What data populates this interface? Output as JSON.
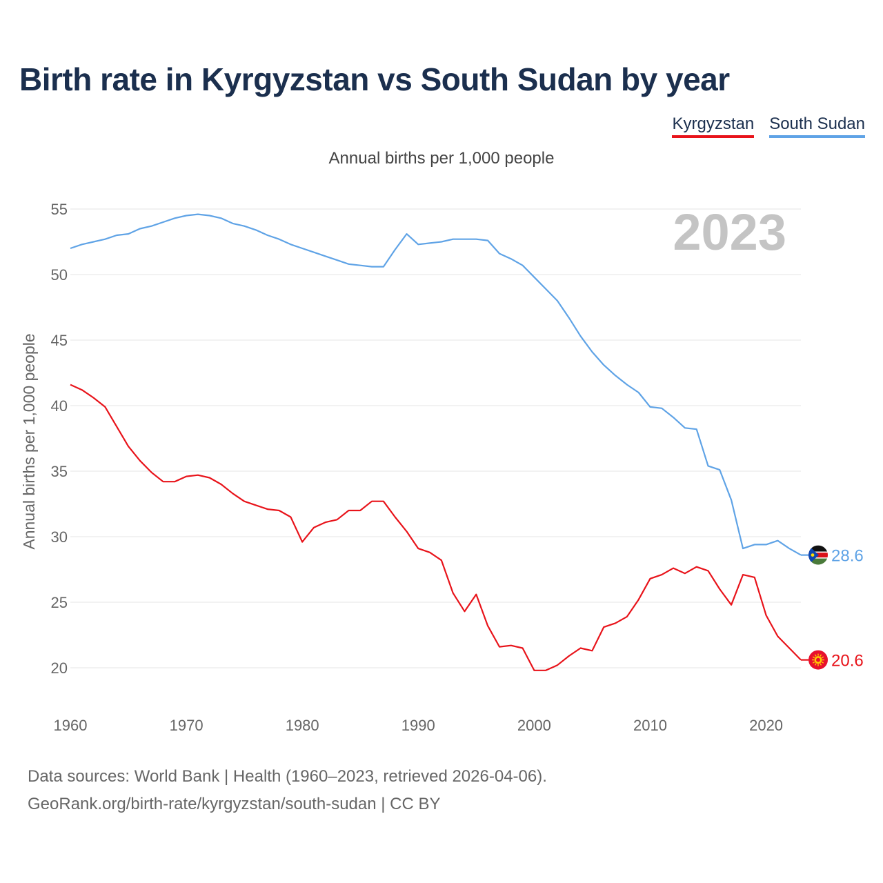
{
  "title": "Birth rate in Kyrgyzstan vs South Sudan by year",
  "subtitle": "Annual births per 1,000 people",
  "legend": [
    {
      "label": "Kyrgyzstan",
      "color": "#e8131a"
    },
    {
      "label": "South Sudan",
      "color": "#5fa3e6"
    }
  ],
  "year_display": "2023",
  "footer": {
    "line1": "Data sources: World Bank | Health (1960–2023, retrieved 2026-04-06).",
    "line2": "GeoRank.org/birth-rate/kyrgyzstan/south-sudan | CC BY"
  },
  "chart_data": {
    "type": "line",
    "title": "Birth rate in Kyrgyzstan vs South Sudan by year",
    "xlabel": "",
    "ylabel": "Annual births per 1,000 people",
    "xlim": [
      1960,
      2023
    ],
    "ylim": [
      17.5,
      55.5
    ],
    "x_ticks": [
      1960,
      1970,
      1980,
      1990,
      2000,
      2010,
      2020
    ],
    "y_ticks": [
      20,
      25,
      30,
      35,
      40,
      45,
      50,
      55
    ],
    "grid": true,
    "x": [
      1960,
      1961,
      1962,
      1963,
      1964,
      1965,
      1966,
      1967,
      1968,
      1969,
      1970,
      1971,
      1972,
      1973,
      1974,
      1975,
      1976,
      1977,
      1978,
      1979,
      1980,
      1981,
      1982,
      1983,
      1984,
      1985,
      1986,
      1987,
      1988,
      1989,
      1990,
      1991,
      1992,
      1993,
      1994,
      1995,
      1996,
      1997,
      1998,
      1999,
      2000,
      2001,
      2002,
      2003,
      2004,
      2005,
      2006,
      2007,
      2008,
      2009,
      2010,
      2011,
      2012,
      2013,
      2014,
      2015,
      2016,
      2017,
      2018,
      2019,
      2020,
      2021,
      2022,
      2023
    ],
    "series": [
      {
        "name": "Kyrgyzstan",
        "color": "#e8131a",
        "end_label": "20.6",
        "values": [
          41.6,
          41.2,
          40.6,
          39.9,
          38.4,
          36.9,
          35.8,
          34.9,
          34.2,
          34.2,
          34.6,
          34.7,
          34.5,
          34.0,
          33.3,
          32.7,
          32.4,
          32.1,
          32.0,
          31.5,
          29.6,
          30.7,
          31.1,
          31.3,
          32.0,
          32.0,
          32.7,
          32.7,
          31.5,
          30.4,
          29.1,
          28.8,
          28.2,
          25.7,
          24.3,
          25.6,
          23.2,
          21.6,
          21.7,
          21.5,
          19.8,
          19.8,
          20.2,
          20.9,
          21.5,
          21.3,
          23.1,
          23.4,
          23.9,
          25.2,
          26.8,
          27.1,
          27.6,
          27.2,
          27.7,
          27.4,
          26.0,
          24.8,
          27.1,
          26.9,
          24.0,
          22.4,
          21.5,
          20.6
        ]
      },
      {
        "name": "South Sudan",
        "color": "#5fa3e6",
        "end_label": "28.6",
        "values": [
          52.0,
          52.3,
          52.5,
          52.7,
          53.0,
          53.1,
          53.5,
          53.7,
          54.0,
          54.3,
          54.5,
          54.6,
          54.5,
          54.3,
          53.9,
          53.7,
          53.4,
          53.0,
          52.7,
          52.3,
          52.0,
          51.7,
          51.4,
          51.1,
          50.8,
          50.7,
          50.6,
          50.6,
          51.9,
          53.1,
          52.3,
          52.4,
          52.5,
          52.7,
          52.7,
          52.7,
          52.6,
          51.6,
          51.2,
          50.7,
          49.8,
          48.9,
          48.0,
          46.7,
          45.3,
          44.1,
          43.1,
          42.3,
          41.6,
          41.0,
          39.9,
          39.8,
          39.1,
          38.3,
          38.2,
          35.4,
          35.1,
          32.8,
          29.1,
          29.4,
          29.4,
          29.7,
          29.1,
          28.6
        ]
      }
    ]
  }
}
